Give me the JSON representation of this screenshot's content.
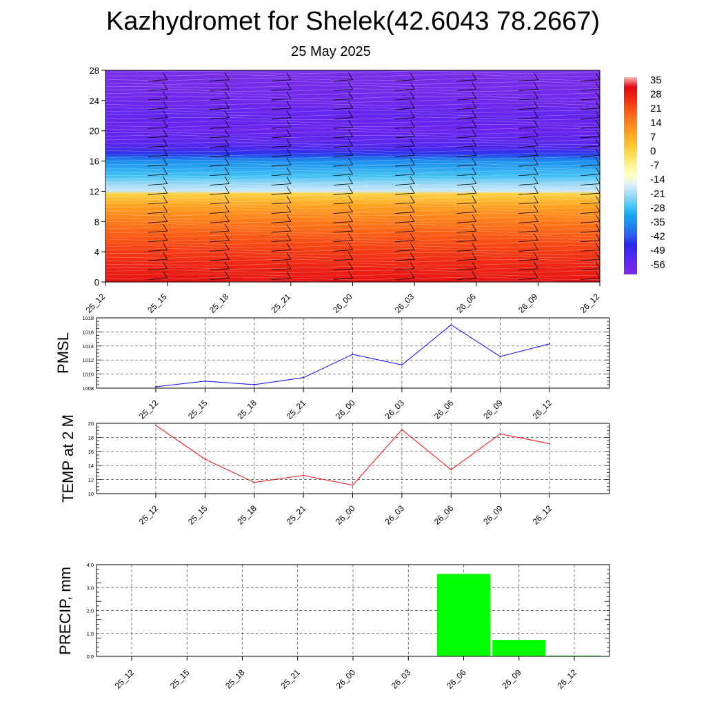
{
  "title": "Kazhydromet for Shelek(42.6043 78.2667)",
  "subtitle": "25 May 2025",
  "time_labels": [
    "25_12",
    "25_15",
    "25_18",
    "25_21",
    "26_00",
    "26_03",
    "26_06",
    "26_09",
    "26_12"
  ],
  "chart_data": [
    {
      "type": "heatmap",
      "name": "temperature-height cross section",
      "xlabel": "",
      "ylabel": "",
      "x": [
        "25_12",
        "25_15",
        "25_18",
        "25_21",
        "26_00",
        "26_03",
        "26_06",
        "26_09",
        "26_12"
      ],
      "y_ticks": [
        0,
        4,
        8,
        12,
        16,
        20,
        24,
        28
      ],
      "ylim": [
        0,
        28
      ],
      "colorbar_labels": [
        "35",
        "28",
        "21",
        "14",
        "7",
        "0",
        "-7",
        "-14",
        "-21",
        "-28",
        "-35",
        "-42",
        "-49",
        "-56"
      ],
      "colorbar_range": [
        -60,
        40
      ],
      "profile": [
        [
          0,
          33
        ],
        [
          2,
          30
        ],
        [
          4,
          27
        ],
        [
          6,
          23
        ],
        [
          8,
          18
        ],
        [
          10,
          12
        ],
        [
          11.7,
          3
        ],
        [
          12,
          -16
        ],
        [
          13,
          -20
        ],
        [
          14,
          -26
        ],
        [
          16,
          -34
        ],
        [
          17,
          -44
        ],
        [
          18,
          -52
        ],
        [
          20,
          -55
        ],
        [
          22,
          -54
        ],
        [
          24,
          -57
        ],
        [
          26,
          -59
        ],
        [
          28,
          -60
        ]
      ],
      "wind_barbs": true,
      "colors": {
        "hot": "#e8001e",
        "warm": "#ff7a1c",
        "mid": "#ffd23a",
        "cold": "#1aa0f0",
        "deep": "#3a2ae8",
        "top": "#7a2ee8"
      }
    },
    {
      "type": "line",
      "ylabel": "PMSL",
      "x": [
        "25_12",
        "25_15",
        "25_18",
        "25_21",
        "26_00",
        "26_03",
        "26_06",
        "26_09",
        "26_12"
      ],
      "values": [
        1008.2,
        1009.0,
        1008.5,
        1009.5,
        1012.8,
        1011.3,
        1017.0,
        1012.5,
        1014.3
      ],
      "ylim": [
        1008,
        1018
      ],
      "y_ticks": [
        "1008",
        "1010",
        "1012",
        "1014",
        "1016",
        "1018"
      ],
      "grid": true,
      "color": "#1a1aff"
    },
    {
      "type": "line",
      "ylabel": "TEMP at 2 M",
      "x": [
        "25_12",
        "25_15",
        "25_18",
        "25_21",
        "26_00",
        "26_03",
        "26_06",
        "26_09",
        "26_12"
      ],
      "values": [
        19.7,
        14.9,
        11.6,
        12.6,
        11.2,
        19.1,
        13.4,
        18.5,
        17.1
      ],
      "ylim": [
        10,
        20
      ],
      "y_ticks": [
        "10",
        "12",
        "14",
        "16",
        "18",
        "20"
      ],
      "grid": true,
      "color": "#ff1a1a"
    },
    {
      "type": "bar",
      "ylabel": "PRECIP, mm",
      "x": [
        "25_12",
        "25_15",
        "25_18",
        "25_21",
        "26_00",
        "26_03",
        "26_06",
        "26_09",
        "26_12"
      ],
      "values": [
        0,
        0,
        0,
        0,
        0,
        0,
        3.6,
        0.72,
        0.03
      ],
      "ylim": [
        0,
        4.0
      ],
      "y_ticks": [
        "0.0",
        "1.0",
        "2.0",
        "3.0",
        "4.0"
      ],
      "grid": true,
      "color": "#00ff00"
    }
  ]
}
